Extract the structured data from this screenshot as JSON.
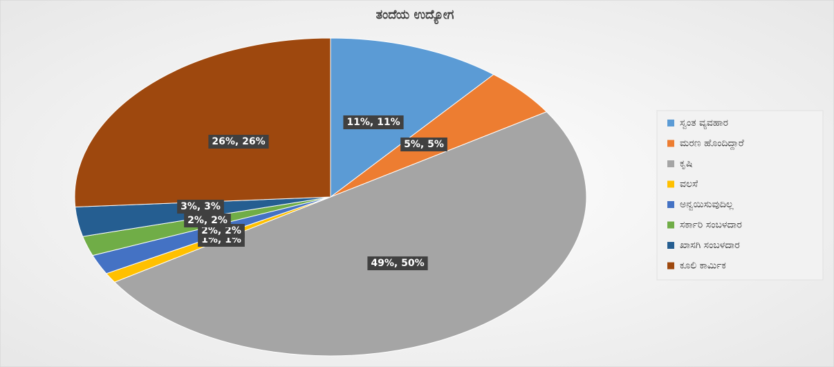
{
  "chart_data": {
    "type": "pie",
    "title": "ತಂದೆಯ ಉದ್ಯೋಗ",
    "categories": [
      "ಸ್ವಂತ ವ್ಯವಹಾರ",
      "ಮರಣ ಹೊಂದಿದ್ದಾರೆ",
      "ಕೃಷಿ",
      "ವಲಸೆ",
      "ಅನ್ವಯಿಸುವುದಿಲ್ಲ",
      "ಸರ್ಕಾರಿ ಸಂಬಳದಾರ",
      "ಖಾಸಗಿ ಸಂಬಳದಾರ",
      "ಕೂಲಿ ಕಾರ್ಮಿಕ"
    ],
    "values": [
      11,
      5,
      50,
      1,
      2,
      2,
      3,
      26
    ],
    "value_labels": [
      "11%, 11%",
      "5%, 5%",
      "49%, 50%",
      "1%, 1%",
      "2%, 2%",
      "2%, 2%",
      "3%, 3%",
      "26%, 26%"
    ],
    "colors": [
      "#5b9bd5",
      "#ed7d31",
      "#a5a5a5",
      "#ffc000",
      "#4472c4",
      "#70ad47",
      "#255e91",
      "#9e480e"
    ],
    "legend": "right"
  }
}
